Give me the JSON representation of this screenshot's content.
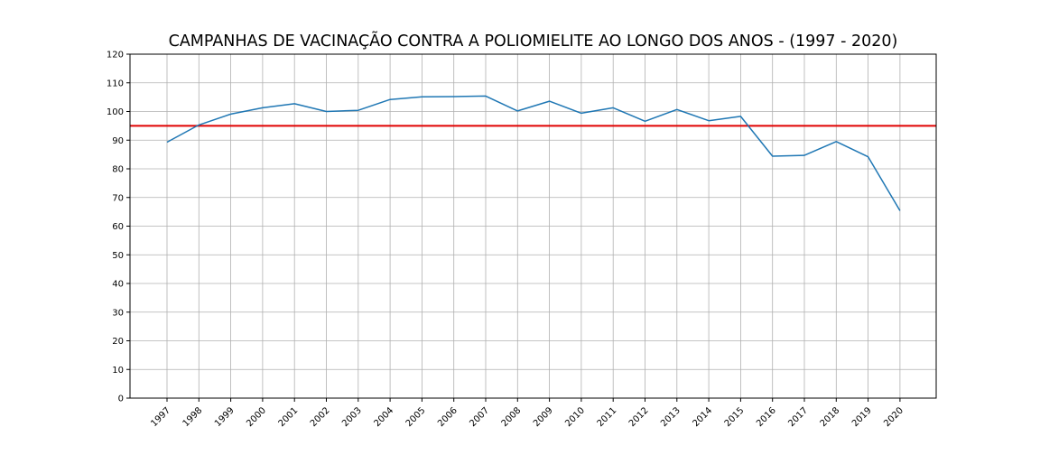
{
  "chart_data": {
    "type": "line",
    "title": "CAMPANHAS DE VACINAÇÃO CONTRA A POLIOMIELITE AO LONGO DOS ANOS - (1997 - 2020)",
    "xlabel": "",
    "ylabel": "",
    "x": [
      "1997",
      "1998",
      "1999",
      "2000",
      "2001",
      "2002",
      "2003",
      "2004",
      "2005",
      "2006",
      "2007",
      "2008",
      "2009",
      "2010",
      "2011",
      "2012",
      "2013",
      "2014",
      "2015",
      "2016",
      "2017",
      "2018",
      "2019",
      "2020"
    ],
    "series": [
      {
        "values": [
          89.3,
          95.3,
          99.1,
          101.3,
          102.7,
          100.0,
          100.4,
          104.2,
          105.1,
          105.2,
          105.4,
          100.2,
          103.6,
          99.4,
          101.3,
          96.6,
          100.7,
          96.8,
          98.3,
          84.4,
          84.7,
          89.5,
          84.2,
          65.4
        ]
      }
    ],
    "reference_line": {
      "y": 95,
      "color": "#e00000"
    },
    "ylim": [
      0,
      120
    ],
    "yticks": [
      0,
      10,
      20,
      30,
      40,
      50,
      60,
      70,
      80,
      90,
      100,
      110,
      120
    ],
    "grid": true,
    "colors": {
      "line": "#1f77b4",
      "reference": "#e00000",
      "grid": "#b0b0b0",
      "axis": "#000000"
    }
  }
}
